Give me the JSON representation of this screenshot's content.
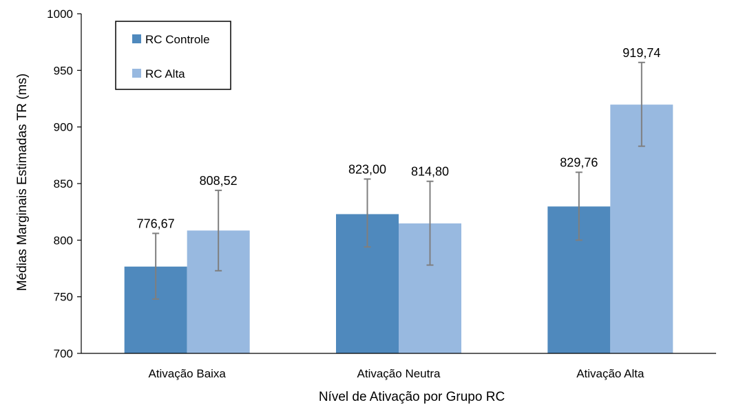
{
  "chart_data": {
    "type": "bar",
    "categories": [
      "Ativação Baixa",
      "Ativação Neutra",
      "Ativação Alta"
    ],
    "series": [
      {
        "name": "RC Controle",
        "values": [
          776.67,
          823.0,
          829.76
        ],
        "labels": [
          "776,67",
          "823,00",
          "829,76"
        ],
        "error_low": [
          748,
          794,
          800
        ],
        "error_high": [
          806,
          854,
          860
        ],
        "color": "#4f89bd"
      },
      {
        "name": "RC Alta",
        "values": [
          808.52,
          814.8,
          919.74
        ],
        "labels": [
          "808,52",
          "814,80",
          "919,74"
        ],
        "error_low": [
          773,
          778,
          883
        ],
        "error_high": [
          844,
          852,
          957
        ],
        "color": "#98b9e0"
      }
    ],
    "xlabel": "Nível de Ativação por Grupo RC",
    "ylabel": "Médias Marginais Estimadas TR (ms)",
    "ylim": [
      700,
      1000
    ],
    "yticks": [
      700,
      750,
      800,
      850,
      900,
      950,
      1000
    ],
    "legend_position": "top-left",
    "grid": false,
    "error_bar_color": "#7f7f7f"
  }
}
